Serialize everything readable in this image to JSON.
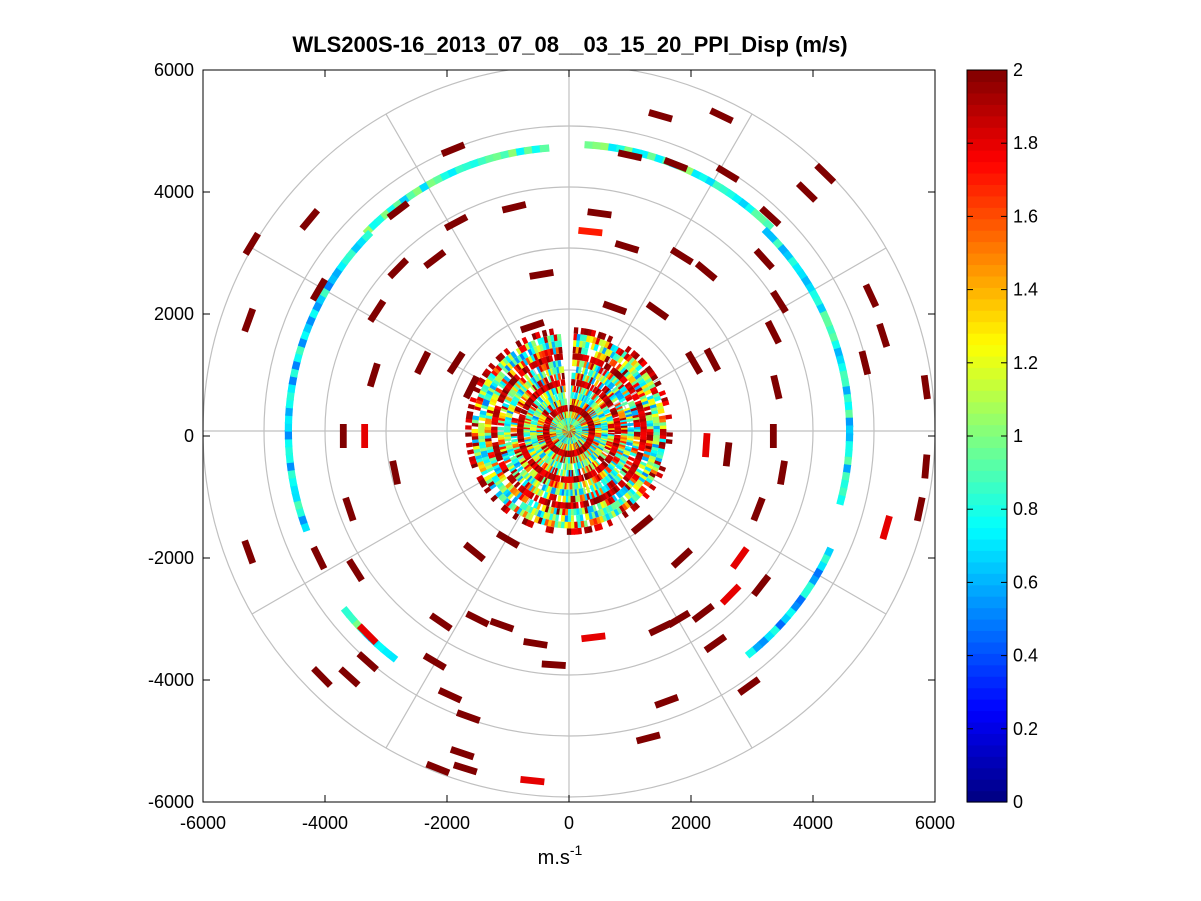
{
  "chart_data": {
    "type": "ppi-polar-scatter",
    "title": "WLS200S-16_2013_07_08__03_15_20_PPI_Disp (m/s)",
    "xlabel": "m.s",
    "xlabel_sup": "-1",
    "ylabel": "",
    "xlim": [
      -6000,
      6000
    ],
    "ylim": [
      -6000,
      6000
    ],
    "x_ticks": [
      -6000,
      -4000,
      -2000,
      0,
      2000,
      4000,
      6000
    ],
    "y_ticks": [
      6000,
      4000,
      2000,
      0,
      -2000,
      -4000,
      -6000
    ],
    "x_tick_labels": [
      "-6000",
      "-4000",
      "-2000",
      "0",
      "2000",
      "4000",
      "6000"
    ],
    "y_tick_labels": [
      "6000",
      "4000",
      "2000",
      "0",
      "-2000",
      "-4000",
      "-6000"
    ],
    "range_rings_m": [
      1000,
      2000,
      3000,
      4000,
      5000,
      6000
    ],
    "spoke_angles_deg": [
      0,
      30,
      60,
      90,
      120,
      150,
      180,
      210,
      240,
      270,
      300,
      330
    ],
    "colorbar": {
      "min": 0,
      "max": 2,
      "ticks": [
        0,
        0.2,
        0.4,
        0.6,
        0.8,
        1,
        1.2,
        1.4,
        1.6,
        1.8,
        2
      ],
      "tick_labels": [
        "0",
        "0.2",
        "0.4",
        "0.6",
        "0.8",
        "1",
        "1.2",
        "1.4",
        "1.6",
        "1.8",
        "2"
      ],
      "colormap": "jet"
    },
    "grid": true,
    "dense_core_range_m": [
      0,
      1700
    ],
    "outer_arcs": [
      {
        "name": "upper-right-arc",
        "range_m": 4700,
        "az_from_deg": 4,
        "az_to_deg": 45,
        "value": 0.85
      },
      {
        "name": "right-arc",
        "range_m": 4600,
        "az_from_deg": 45,
        "az_to_deg": 105,
        "value": 0.75
      },
      {
        "name": "upper-left-arc",
        "range_m": 4650,
        "az_from_deg": -45,
        "az_to_deg": -4,
        "value": 0.85
      },
      {
        "name": "left-arc",
        "range_m": 4600,
        "az_from_deg": -110,
        "az_to_deg": -45,
        "value": 0.7
      },
      {
        "name": "lower-right-arc",
        "range_m": 4700,
        "az_from_deg": 115,
        "az_to_deg": 142,
        "value": 0.65
      },
      {
        "name": "lower-left-arc",
        "range_m": 4700,
        "az_from_deg": -142,
        "az_to_deg": -128,
        "value": 0.8
      }
    ],
    "scattered_returns": [
      {
        "x": 1500,
        "y": 5250,
        "value": 2
      },
      {
        "x": 2500,
        "y": 5250,
        "value": 2
      },
      {
        "x": 4200,
        "y": 4300,
        "value": 2
      },
      {
        "x": 3900,
        "y": 4000,
        "value": 2
      },
      {
        "x": 3300,
        "y": 3600,
        "value": 2
      },
      {
        "x": 2600,
        "y": 4300,
        "value": 2
      },
      {
        "x": 1750,
        "y": 4450,
        "value": 2
      },
      {
        "x": 1000,
        "y": 4600,
        "value": 2
      },
      {
        "x": -1900,
        "y": 4700,
        "value": 2
      },
      {
        "x": -2800,
        "y": 3700,
        "value": 2
      },
      {
        "x": -4250,
        "y": 3550,
        "value": 2
      },
      {
        "x": -5200,
        "y": 3150,
        "value": 2
      },
      {
        "x": -5250,
        "y": 1900,
        "value": 2
      },
      {
        "x": -4100,
        "y": 2400,
        "value": 2
      },
      {
        "x": -3150,
        "y": 2050,
        "value": 2
      },
      {
        "x": -2800,
        "y": 2750,
        "value": 2
      },
      {
        "x": -2200,
        "y": 2900,
        "value": 2
      },
      {
        "x": -1850,
        "y": 3500,
        "value": 2
      },
      {
        "x": -900,
        "y": 3750,
        "value": 2
      },
      {
        "x": -450,
        "y": 2650,
        "value": 2
      },
      {
        "x": 500,
        "y": 3650,
        "value": 2
      },
      {
        "x": 350,
        "y": 3350,
        "value": 1.7
      },
      {
        "x": 950,
        "y": 3100,
        "value": 2
      },
      {
        "x": 1850,
        "y": 2950,
        "value": 2
      },
      {
        "x": 2250,
        "y": 2700,
        "value": 2
      },
      {
        "x": 3200,
        "y": 2900,
        "value": 2
      },
      {
        "x": 3450,
        "y": 2200,
        "value": 2
      },
      {
        "x": 3350,
        "y": 1700,
        "value": 2
      },
      {
        "x": 4950,
        "y": 2300,
        "value": 2
      },
      {
        "x": 5150,
        "y": 1650,
        "value": 2
      },
      {
        "x": 4850,
        "y": 1200,
        "value": 2
      },
      {
        "x": 5850,
        "y": 800,
        "value": 2
      },
      {
        "x": 5850,
        "y": -500,
        "value": 2
      },
      {
        "x": 5750,
        "y": -1200,
        "value": 2
      },
      {
        "x": 5200,
        "y": -1500,
        "value": 1.8
      },
      {
        "x": 3400,
        "y": 800,
        "value": 2
      },
      {
        "x": 3350,
        "y": 0,
        "value": 2
      },
      {
        "x": 3500,
        "y": -600,
        "value": 2
      },
      {
        "x": 2600,
        "y": -300,
        "value": 2
      },
      {
        "x": 2250,
        "y": -150,
        "value": 1.8
      },
      {
        "x": 3100,
        "y": -1200,
        "value": 2
      },
      {
        "x": 2800,
        "y": -2000,
        "value": 1.8
      },
      {
        "x": 2650,
        "y": -2600,
        "value": 1.8
      },
      {
        "x": 2200,
        "y": -2900,
        "value": 2
      },
      {
        "x": 1800,
        "y": -3000,
        "value": 2
      },
      {
        "x": 1500,
        "y": -3150,
        "value": 2
      },
      {
        "x": 1850,
        "y": -2000,
        "value": 2
      },
      {
        "x": 3150,
        "y": -2450,
        "value": 2
      },
      {
        "x": 2950,
        "y": -4100,
        "value": 2
      },
      {
        "x": 1600,
        "y": -4350,
        "value": 2
      },
      {
        "x": 1300,
        "y": -4950,
        "value": 2
      },
      {
        "x": 400,
        "y": -3300,
        "value": 1.8
      },
      {
        "x": -550,
        "y": -3400,
        "value": 2
      },
      {
        "x": -1100,
        "y": -3100,
        "value": 2
      },
      {
        "x": -1500,
        "y": -3000,
        "value": 2
      },
      {
        "x": -2100,
        "y": -3050,
        "value": 2
      },
      {
        "x": -2200,
        "y": -3700,
        "value": 2
      },
      {
        "x": -1950,
        "y": -4250,
        "value": 2
      },
      {
        "x": -1650,
        "y": -4600,
        "value": 2
      },
      {
        "x": -1750,
        "y": -5200,
        "value": 2
      },
      {
        "x": -1700,
        "y": -5450,
        "value": 2
      },
      {
        "x": -2150,
        "y": -5450,
        "value": 2
      },
      {
        "x": -600,
        "y": -5650,
        "value": 1.8
      },
      {
        "x": -250,
        "y": -3750,
        "value": 2
      },
      {
        "x": -3500,
        "y": -2200,
        "value": 2
      },
      {
        "x": -4100,
        "y": -2000,
        "value": 2
      },
      {
        "x": -5250,
        "y": -1900,
        "value": 2
      },
      {
        "x": -3300,
        "y": -3700,
        "value": 2
      },
      {
        "x": -4050,
        "y": -3950,
        "value": 2
      },
      {
        "x": -3600,
        "y": -3950,
        "value": 2
      },
      {
        "x": -3300,
        "y": -3250,
        "value": 1.8
      },
      {
        "x": -3700,
        "y": 0,
        "value": 2
      },
      {
        "x": -3350,
        "y": 0,
        "value": 1.8
      },
      {
        "x": -2850,
        "y": -600,
        "value": 2
      },
      {
        "x": -3600,
        "y": -1200,
        "value": 2
      },
      {
        "x": -3200,
        "y": 1000,
        "value": 2
      },
      {
        "x": -1600,
        "y": 800,
        "value": 2
      },
      {
        "x": -2400,
        "y": 1200,
        "value": 2
      },
      {
        "x": -1850,
        "y": 1200,
        "value": 2
      },
      {
        "x": -600,
        "y": 1800,
        "value": 2
      },
      {
        "x": 750,
        "y": 2100,
        "value": 2
      },
      {
        "x": 1450,
        "y": 2050,
        "value": 2
      },
      {
        "x": 2050,
        "y": 1200,
        "value": 2
      },
      {
        "x": 2350,
        "y": 1250,
        "value": 2
      },
      {
        "x": -1000,
        "y": -1700,
        "value": 2
      },
      {
        "x": -1550,
        "y": -1900,
        "value": 2
      },
      {
        "x": 1200,
        "y": -1450,
        "value": 2
      },
      {
        "x": 2400,
        "y": -3400,
        "value": 2
      }
    ]
  }
}
